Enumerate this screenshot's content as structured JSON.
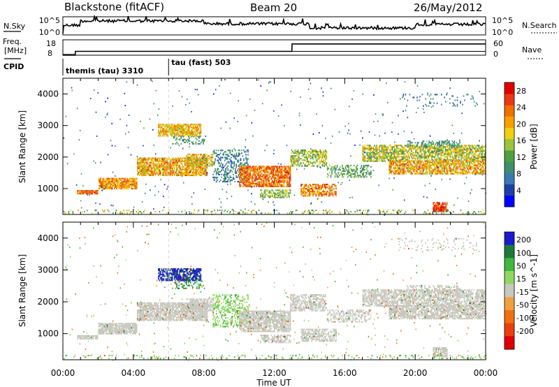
{
  "header": {
    "station": "Blackstone (fitACF)",
    "beam": "Beam 20",
    "date": "26/May/2012"
  },
  "side_labels": {
    "nsky": "N.Sky",
    "freq_line1": "Freq.",
    "freq_line2": "[MHz]",
    "cpid": "CPID",
    "nsearch": "N.Search",
    "nave": "Nave"
  },
  "summary_axes": {
    "nsky_ticks": [
      "10^5",
      "10^0"
    ],
    "nsearch_ticks": [
      "10^5",
      "10^0"
    ],
    "freq_ticks": [
      "18",
      "8"
    ],
    "nave_ticks": [
      "60",
      "0"
    ]
  },
  "cpid": [
    {
      "label": "themis (tau) 3310",
      "start_hour": 0.0
    },
    {
      "label": "tau (fast) 503",
      "start_hour": 6.0
    }
  ],
  "chart_data": [
    {
      "type": "line",
      "title": "Freq. [MHz] / Nave",
      "x_hours": [
        0,
        0.7,
        0.71,
        13.0,
        13.01,
        24
      ],
      "series": [
        {
          "name": "Freq.",
          "ylim": [
            8,
            18
          ],
          "values": [
            8.5,
            8.5,
            10.5,
            10.5,
            10.5,
            10.5
          ]
        },
        {
          "name": "Nave",
          "ylim": [
            0,
            60
          ],
          "values": [
            0,
            0,
            15,
            15,
            44,
            44
          ]
        }
      ]
    },
    {
      "type": "heatmap",
      "title": "Power [dB]",
      "xlabel": "Time UT",
      "ylabel": "Slant Range [km]",
      "xlim_hours": [
        0,
        24
      ],
      "ylim_km": [
        180,
        4500
      ],
      "x_ticks": [
        "00:00",
        "04:00",
        "08:00",
        "12:00",
        "16:00",
        "20:00",
        "00:00"
      ],
      "y_ticks": [
        "1000",
        "2000",
        "3000",
        "4000"
      ],
      "colorbar": {
        "label": "Power [dB]",
        "ticks": [
          "4",
          "8",
          "12",
          "16",
          "20",
          "24",
          "28"
        ],
        "range": [
          0,
          30
        ]
      }
    },
    {
      "type": "heatmap",
      "title": "Velocity [m s^-1]",
      "xlabel": "Time UT",
      "ylabel": "Slant Range [km]",
      "xlim_hours": [
        0,
        24
      ],
      "ylim_km": [
        180,
        4500
      ],
      "x_ticks": [
        "00:00",
        "04:00",
        "08:00",
        "12:00",
        "16:00",
        "20:00",
        "00:00"
      ],
      "y_ticks": [
        "1000",
        "2000",
        "3000",
        "4000"
      ],
      "colorbar": {
        "label": "Velocity [m s^-1]",
        "ticks": [
          "200",
          "100",
          "50",
          "15",
          "-15",
          "-50",
          "-100",
          "-200"
        ]
      }
    }
  ],
  "bands": [
    {
      "t0": 0.8,
      "t1": 2.0,
      "r0": 820,
      "r1": 950,
      "dens": 0.9,
      "pw": [
        20,
        28
      ],
      "vl": [
        -15,
        15
      ]
    },
    {
      "t0": 2.0,
      "t1": 4.2,
      "r0": 980,
      "r1": 1320,
      "dens": 0.85,
      "pw": [
        16,
        26
      ],
      "vl": [
        -15,
        15
      ]
    },
    {
      "t0": 4.2,
      "t1": 8.2,
      "r0": 1400,
      "r1": 1950,
      "dens": 0.8,
      "pw": [
        14,
        26
      ],
      "vl": [
        -15,
        15
      ]
    },
    {
      "t0": 7.0,
      "t1": 8.5,
      "r0": 1700,
      "r1": 2100,
      "dens": 0.7,
      "pw": [
        12,
        24
      ],
      "vl": [
        -15,
        15
      ]
    },
    {
      "t0": 5.4,
      "t1": 7.8,
      "r0": 2650,
      "r1": 3050,
      "dens": 0.75,
      "pw": [
        14,
        24
      ],
      "vl": [
        120,
        230
      ]
    },
    {
      "t0": 6.2,
      "t1": 8.0,
      "r0": 2400,
      "r1": 2650,
      "dens": 0.3,
      "pw": [
        6,
        14
      ],
      "vl": [
        50,
        150
      ]
    },
    {
      "t0": 8.5,
      "t1": 10.5,
      "r0": 1200,
      "r1": 2200,
      "dens": 0.35,
      "pw": [
        4,
        12
      ],
      "vl": [
        15,
        60
      ]
    },
    {
      "t0": 10.0,
      "t1": 12.9,
      "r0": 1050,
      "r1": 1700,
      "dens": 0.8,
      "pw": [
        18,
        28
      ],
      "vl": [
        -15,
        15
      ]
    },
    {
      "t0": 11.2,
      "t1": 12.9,
      "r0": 700,
      "r1": 950,
      "dens": 0.6,
      "pw": [
        10,
        18
      ],
      "vl": [
        -15,
        15
      ]
    },
    {
      "t0": 12.9,
      "t1": 15.0,
      "r0": 1700,
      "r1": 2200,
      "dens": 0.6,
      "pw": [
        10,
        20
      ],
      "vl": [
        -15,
        15
      ]
    },
    {
      "t0": 13.5,
      "t1": 15.5,
      "r0": 750,
      "r1": 1150,
      "dens": 0.65,
      "pw": [
        16,
        28
      ],
      "vl": [
        -15,
        15
      ]
    },
    {
      "t0": 15.0,
      "t1": 17.5,
      "r0": 1350,
      "r1": 1750,
      "dens": 0.45,
      "pw": [
        8,
        16
      ],
      "vl": [
        -15,
        15
      ]
    },
    {
      "t0": 17.0,
      "t1": 24.0,
      "r0": 1850,
      "r1": 2350,
      "dens": 0.7,
      "pw": [
        10,
        22
      ],
      "vl": [
        -15,
        15
      ]
    },
    {
      "t0": 18.5,
      "t1": 24.0,
      "r0": 1450,
      "r1": 1900,
      "dens": 0.75,
      "pw": [
        14,
        26
      ],
      "vl": [
        -15,
        15
      ]
    },
    {
      "t0": 19.5,
      "t1": 22.5,
      "r0": 2300,
      "r1": 2500,
      "dens": 0.4,
      "pw": [
        6,
        14
      ],
      "vl": [
        -15,
        15
      ]
    },
    {
      "t0": 21.0,
      "t1": 21.8,
      "r0": 260,
      "r1": 560,
      "dens": 0.8,
      "pw": [
        22,
        30
      ],
      "vl": [
        -15,
        15
      ]
    },
    {
      "t0": 0.0,
      "t1": 24.0,
      "r0": 200,
      "r1": 320,
      "dens": 0.15,
      "pw": [
        8,
        20
      ],
      "vl": [
        15,
        60
      ]
    },
    {
      "t0": 19.0,
      "t1": 23.5,
      "r0": 3600,
      "r1": 4000,
      "dens": 0.12,
      "pw": [
        4,
        10
      ],
      "vl": [
        -15,
        15
      ]
    }
  ]
}
